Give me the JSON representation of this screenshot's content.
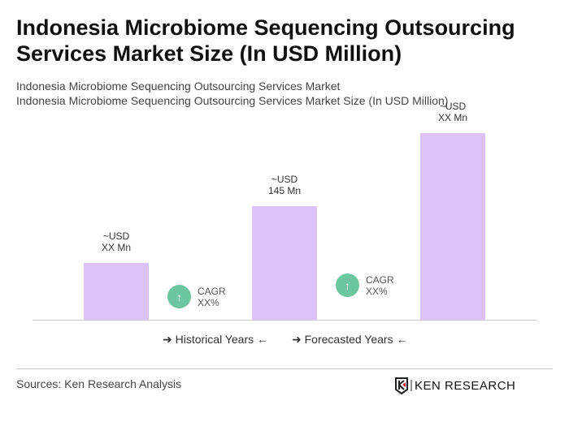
{
  "title": "Indonesia Microbiome Sequencing Outsourcing Services Market Size (In USD Million)",
  "subtitle1": "Indonesia Microbiome Sequencing Outsourcing Services Market",
  "subtitle2": "Indonesia Microbiome Sequencing Outsourcing Services Market Size (In USD Million)",
  "chart_data": {
    "type": "bar",
    "values": [
      72,
      145,
      238
    ],
    "labels": [
      {
        "l1": "~USD",
        "l2": "XX Mn"
      },
      {
        "l1": "~USD",
        "l2": "145 Mn"
      },
      {
        "l1": "~USD",
        "l2": "XX Mn"
      }
    ],
    "bar_color": "#dcc3f7",
    "cagr": [
      {
        "label": "CAGR",
        "value": "XX%"
      },
      {
        "label": "CAGR",
        "value": "XX%"
      }
    ],
    "legend": [
      "Historical Years",
      "Forecasted Years"
    ]
  },
  "source": "Sources: Ken Research Analysis",
  "logo": "KEN RESEARCH"
}
